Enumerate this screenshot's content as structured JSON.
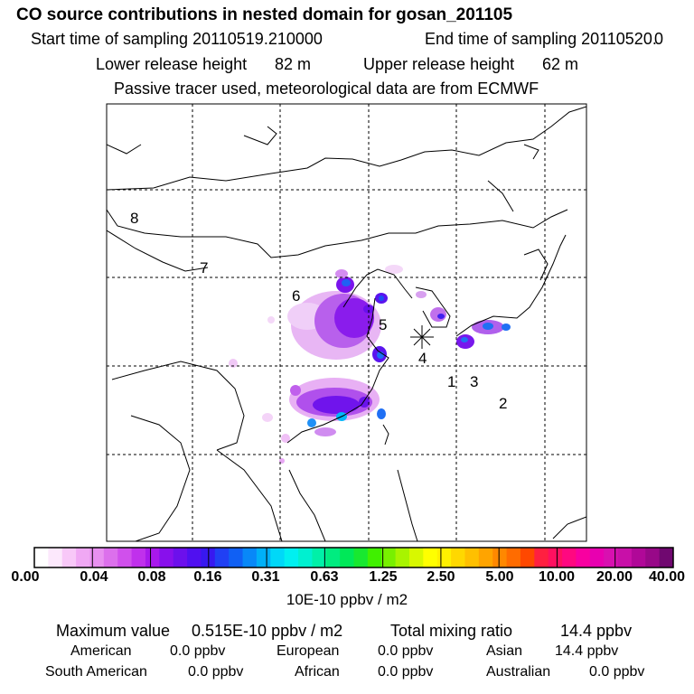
{
  "header": {
    "title": "CO  source contributions in nested domain for gosan_201105",
    "start_label": "Start time of sampling 20110519.210000",
    "end_label": "End time of sampling 20110520.",
    "end_value": "0",
    "lower_label": "Lower release height",
    "lower_value": "82 m",
    "upper_label": "Upper release height",
    "upper_value": "62 m",
    "note": "Passive tracer used, meteorological data are from ECMWF"
  },
  "map": {
    "region_labels": [
      "8",
      "7",
      "6",
      "5",
      "4",
      "1",
      "3",
      "2"
    ],
    "receptor_marker": "asterisk-marker"
  },
  "colorbar": {
    "tick_labels": [
      "0.00",
      "0.04",
      "0.08",
      "0.16",
      "0.31",
      "0.63",
      "1.25",
      "2.50",
      "5.00",
      "10.00",
      "20.00",
      "40.00"
    ],
    "unit": "10E-10 ppbv / m2",
    "colors": [
      "#ffffff",
      "#fce8fc",
      "#f8c8f8",
      "#f0a8f4",
      "#e890f0",
      "#dc70ec",
      "#d050ec",
      "#c030ec",
      "#a818ec",
      "#8810ec",
      "#6c10ec",
      "#5010f0",
      "#3818f0",
      "#2040f4",
      "#1060f4",
      "#0888f8",
      "#00b0f8",
      "#00d8f8",
      "#00f0f0",
      "#00f0d0",
      "#00f0a8",
      "#00ec80",
      "#00e858",
      "#18e830",
      "#40f000",
      "#78f000",
      "#a8f400",
      "#d8f800",
      "#ffff00",
      "#fff000",
      "#ffd800",
      "#ffc000",
      "#ffa400",
      "#ff8800",
      "#ff6c00",
      "#ff4800",
      "#ff2040",
      "#ff1060",
      "#ff0880",
      "#f800a0",
      "#e800b0",
      "#d810b0",
      "#c810a8",
      "#b00898",
      "#980888",
      "#700870"
    ]
  },
  "stats": {
    "max_label": "Maximum value",
    "max_value": "0.515E-10 ppbv / m2",
    "total_label": "Total mixing ratio",
    "total_value": "14.4 ppbv",
    "rows": [
      [
        {
          "name": "American",
          "value": "0.0 ppbv"
        },
        {
          "name": "European",
          "value": "0.0 ppbv"
        },
        {
          "name": "Asian",
          "value": "14.4 ppbv"
        }
      ],
      [
        {
          "name": "South American",
          "value": "0.0 ppbv"
        },
        {
          "name": "African",
          "value": "0.0 ppbv"
        },
        {
          "name": "Australian",
          "value": "0.0 ppbv"
        }
      ]
    ]
  }
}
